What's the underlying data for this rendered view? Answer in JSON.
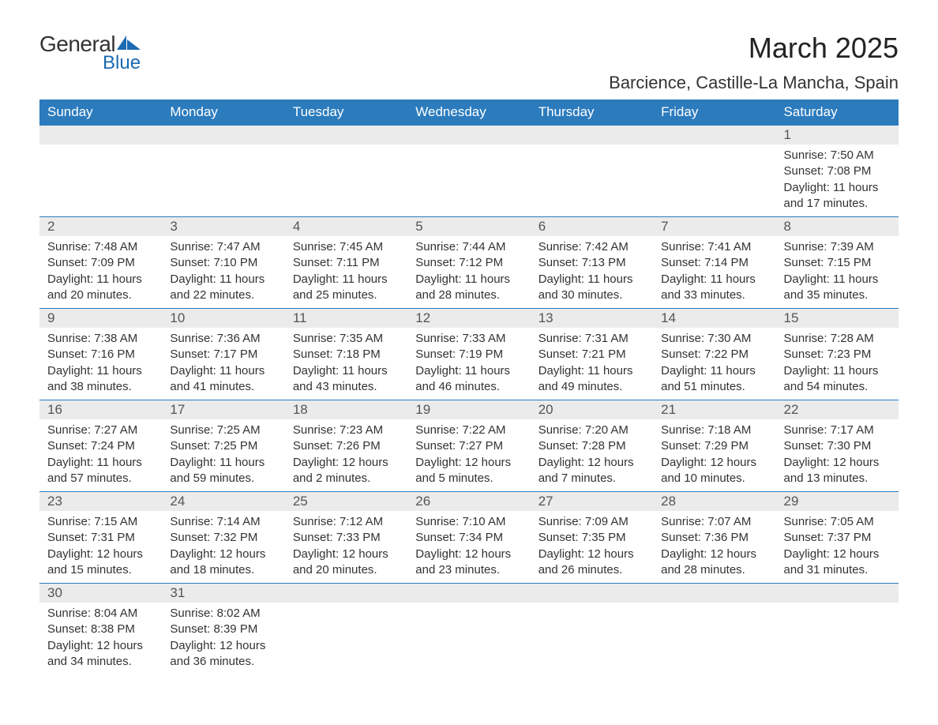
{
  "logo": {
    "text_general": "General",
    "text_blue": "Blue",
    "shape_color": "#1b6ab2"
  },
  "title": "March 2025",
  "location": "Barcience, Castille-La Mancha, Spain",
  "colors": {
    "header_bg": "#2b7bbd",
    "header_text": "#ffffff",
    "daynum_bg": "#ebebeb",
    "border": "#2b7bbd",
    "body_text": "#333333",
    "background": "#ffffff"
  },
  "typography": {
    "title_fontsize": 36,
    "location_fontsize": 22,
    "header_fontsize": 17,
    "daynum_fontsize": 17,
    "data_fontsize": 15,
    "font_family": "Arial"
  },
  "calendar": {
    "columns": [
      "Sunday",
      "Monday",
      "Tuesday",
      "Wednesday",
      "Thursday",
      "Friday",
      "Saturday"
    ],
    "weeks": [
      [
        null,
        null,
        null,
        null,
        null,
        null,
        {
          "day": "1",
          "sunrise": "7:50 AM",
          "sunset": "7:08 PM",
          "daylight": "11 hours and 17 minutes."
        }
      ],
      [
        {
          "day": "2",
          "sunrise": "7:48 AM",
          "sunset": "7:09 PM",
          "daylight": "11 hours and 20 minutes."
        },
        {
          "day": "3",
          "sunrise": "7:47 AM",
          "sunset": "7:10 PM",
          "daylight": "11 hours and 22 minutes."
        },
        {
          "day": "4",
          "sunrise": "7:45 AM",
          "sunset": "7:11 PM",
          "daylight": "11 hours and 25 minutes."
        },
        {
          "day": "5",
          "sunrise": "7:44 AM",
          "sunset": "7:12 PM",
          "daylight": "11 hours and 28 minutes."
        },
        {
          "day": "6",
          "sunrise": "7:42 AM",
          "sunset": "7:13 PM",
          "daylight": "11 hours and 30 minutes."
        },
        {
          "day": "7",
          "sunrise": "7:41 AM",
          "sunset": "7:14 PM",
          "daylight": "11 hours and 33 minutes."
        },
        {
          "day": "8",
          "sunrise": "7:39 AM",
          "sunset": "7:15 PM",
          "daylight": "11 hours and 35 minutes."
        }
      ],
      [
        {
          "day": "9",
          "sunrise": "7:38 AM",
          "sunset": "7:16 PM",
          "daylight": "11 hours and 38 minutes."
        },
        {
          "day": "10",
          "sunrise": "7:36 AM",
          "sunset": "7:17 PM",
          "daylight": "11 hours and 41 minutes."
        },
        {
          "day": "11",
          "sunrise": "7:35 AM",
          "sunset": "7:18 PM",
          "daylight": "11 hours and 43 minutes."
        },
        {
          "day": "12",
          "sunrise": "7:33 AM",
          "sunset": "7:19 PM",
          "daylight": "11 hours and 46 minutes."
        },
        {
          "day": "13",
          "sunrise": "7:31 AM",
          "sunset": "7:21 PM",
          "daylight": "11 hours and 49 minutes."
        },
        {
          "day": "14",
          "sunrise": "7:30 AM",
          "sunset": "7:22 PM",
          "daylight": "11 hours and 51 minutes."
        },
        {
          "day": "15",
          "sunrise": "7:28 AM",
          "sunset": "7:23 PM",
          "daylight": "11 hours and 54 minutes."
        }
      ],
      [
        {
          "day": "16",
          "sunrise": "7:27 AM",
          "sunset": "7:24 PM",
          "daylight": "11 hours and 57 minutes."
        },
        {
          "day": "17",
          "sunrise": "7:25 AM",
          "sunset": "7:25 PM",
          "daylight": "11 hours and 59 minutes."
        },
        {
          "day": "18",
          "sunrise": "7:23 AM",
          "sunset": "7:26 PM",
          "daylight": "12 hours and 2 minutes."
        },
        {
          "day": "19",
          "sunrise": "7:22 AM",
          "sunset": "7:27 PM",
          "daylight": "12 hours and 5 minutes."
        },
        {
          "day": "20",
          "sunrise": "7:20 AM",
          "sunset": "7:28 PM",
          "daylight": "12 hours and 7 minutes."
        },
        {
          "day": "21",
          "sunrise": "7:18 AM",
          "sunset": "7:29 PM",
          "daylight": "12 hours and 10 minutes."
        },
        {
          "day": "22",
          "sunrise": "7:17 AM",
          "sunset": "7:30 PM",
          "daylight": "12 hours and 13 minutes."
        }
      ],
      [
        {
          "day": "23",
          "sunrise": "7:15 AM",
          "sunset": "7:31 PM",
          "daylight": "12 hours and 15 minutes."
        },
        {
          "day": "24",
          "sunrise": "7:14 AM",
          "sunset": "7:32 PM",
          "daylight": "12 hours and 18 minutes."
        },
        {
          "day": "25",
          "sunrise": "7:12 AM",
          "sunset": "7:33 PM",
          "daylight": "12 hours and 20 minutes."
        },
        {
          "day": "26",
          "sunrise": "7:10 AM",
          "sunset": "7:34 PM",
          "daylight": "12 hours and 23 minutes."
        },
        {
          "day": "27",
          "sunrise": "7:09 AM",
          "sunset": "7:35 PM",
          "daylight": "12 hours and 26 minutes."
        },
        {
          "day": "28",
          "sunrise": "7:07 AM",
          "sunset": "7:36 PM",
          "daylight": "12 hours and 28 minutes."
        },
        {
          "day": "29",
          "sunrise": "7:05 AM",
          "sunset": "7:37 PM",
          "daylight": "12 hours and 31 minutes."
        }
      ],
      [
        {
          "day": "30",
          "sunrise": "8:04 AM",
          "sunset": "8:38 PM",
          "daylight": "12 hours and 34 minutes."
        },
        {
          "day": "31",
          "sunrise": "8:02 AM",
          "sunset": "8:39 PM",
          "daylight": "12 hours and 36 minutes."
        },
        null,
        null,
        null,
        null,
        null
      ]
    ],
    "labels": {
      "sunrise": "Sunrise:",
      "sunset": "Sunset:",
      "daylight": "Daylight:"
    }
  }
}
